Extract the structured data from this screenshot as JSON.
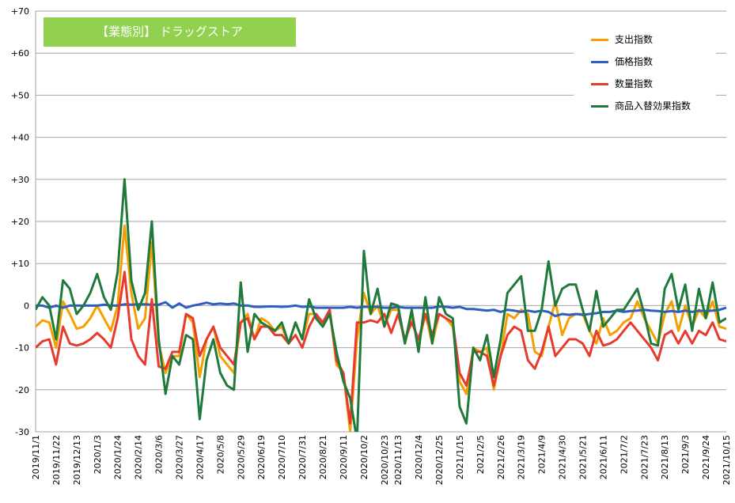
{
  "chart_data": {
    "type": "line",
    "title": "【業態別】 ドラッグストア",
    "ylim": [
      -30,
      70
    ],
    "yticks": [
      "+70",
      "+60",
      "+50",
      "+40",
      "+30",
      "+20",
      "+10",
      "0",
      "-10",
      "-20",
      "-30"
    ],
    "ytick_values": [
      70,
      60,
      50,
      40,
      30,
      20,
      10,
      0,
      -10,
      -20,
      -30
    ],
    "x_tick_labels": [
      "2019/11/1",
      "2019/11/22",
      "2019/12/13",
      "2020/1/3",
      "2020/1/24",
      "2020/2/14",
      "2020/3/6",
      "2020/3/27",
      "2020/4/17",
      "2020/5/8",
      "2020/5/29",
      "2020/6/19",
      "2020/7/10",
      "2020/7/31",
      "2020/8/21",
      "2020/9/11",
      "2020/10/2",
      "2020/10/23",
      "2020/11/13",
      "2020/12/4",
      "2020/12/25",
      "2021/1/15",
      "2021/2/5",
      "2021/2/26",
      "2021/3/19",
      "2021/4/9",
      "2021/4/30",
      "2021/5/21",
      "2021/6/11",
      "2021/7/2",
      "2021/7/23",
      "2021/8/13",
      "2021/9/3",
      "2021/9/24",
      "2021/10/15"
    ],
    "grid": true,
    "legend_position": "top-right",
    "series": [
      {
        "name": "支出指数",
        "color": "#f5a000",
        "values": [
          -5,
          -3.5,
          -4,
          -10,
          1,
          -2,
          -5.5,
          -5,
          -3,
          0,
          -3,
          -6,
          0,
          19,
          3,
          -5.5,
          -3,
          15,
          -9,
          -16,
          -12,
          -12,
          -2,
          -4,
          -17,
          -8,
          -5,
          -12,
          -14,
          -16,
          -4,
          -2,
          -8,
          -3,
          -4,
          -6,
          -5,
          -9,
          -4,
          -8,
          -2,
          -2,
          -5,
          -1,
          -14,
          -16,
          -30,
          -8,
          3,
          -2,
          0,
          -5,
          -1,
          -1,
          -9,
          -3,
          -9,
          -2,
          -9,
          -2,
          -3,
          -5,
          -18,
          -21,
          -10,
          -11,
          -10,
          -20,
          -12,
          -2,
          -3,
          -1,
          -2,
          -11,
          -12,
          -5,
          1,
          -7,
          -3,
          -2,
          -2,
          -6,
          -9,
          -3,
          -7,
          -6,
          -4,
          -3,
          1,
          -3,
          -6,
          -9,
          -2,
          1,
          -6,
          0,
          -5,
          -1,
          -3,
          1,
          -5,
          -5.5
        ]
      },
      {
        "name": "価格指数",
        "color": "#2e5fbf",
        "values": [
          0,
          0,
          -0.5,
          0,
          -0.5,
          0,
          0,
          0,
          0,
          0,
          0.2,
          0,
          0,
          0.3,
          0.2,
          0.3,
          0.3,
          0.2,
          0.2,
          0.8,
          -0.5,
          0.5,
          -0.5,
          0,
          0.3,
          0.7,
          0.3,
          0.5,
          0.3,
          0.5,
          0,
          0,
          -0.3,
          -0.3,
          -0.2,
          -0.2,
          -0.3,
          -0.2,
          0,
          -0.3,
          -0.2,
          -0.5,
          -0.5,
          -0.5,
          -0.5,
          -0.5,
          -0.3,
          -0.5,
          -0.3,
          -0.3,
          -0.3,
          -0.5,
          -0.5,
          -0.3,
          -0.5,
          -0.5,
          -0.5,
          -0.5,
          -0.5,
          -0.2,
          -0.3,
          -0.5,
          -0.3,
          -0.8,
          -0.8,
          -1,
          -1.2,
          -1,
          -1.5,
          -1,
          -1.2,
          -1.5,
          -1.2,
          -1.5,
          -1.2,
          -1.5,
          -2.5,
          -2,
          -2.2,
          -2,
          -2.2,
          -2,
          -1.8,
          -1.5,
          -1.5,
          -1.2,
          -1.5,
          -1.3,
          -1.2,
          -1,
          -1.2,
          -1.3,
          -1.5,
          -1.3,
          -1.5,
          -1.2,
          -1.5,
          -1.2,
          -1.3,
          -1.2,
          -1,
          -0.5
        ]
      },
      {
        "name": "数量指数",
        "color": "#e63b2e",
        "values": [
          -10,
          -8.5,
          -8,
          -14,
          -5,
          -9,
          -9.5,
          -9,
          -8,
          -6.5,
          -8,
          -10,
          -3,
          8,
          -8,
          -12,
          -14,
          1.5,
          -14.5,
          -15,
          -11,
          -11,
          -2,
          -3,
          -12,
          -8,
          -5,
          -10,
          -12,
          -14,
          -4,
          -3,
          -8,
          -5,
          -5,
          -7,
          -7,
          -9,
          -7,
          -10,
          -5,
          -2,
          -4,
          -1,
          -13,
          -16,
          -28,
          -4,
          -4,
          -3.5,
          -4,
          -2,
          -6.5,
          -2,
          -8,
          -4,
          -8,
          -2,
          -7,
          -2,
          -3,
          -4,
          -16,
          -19,
          -11,
          -11,
          -12,
          -19,
          -12,
          -7,
          -5,
          -6,
          -13,
          -15,
          -11,
          -5,
          -12,
          -10,
          -8,
          -8,
          -9,
          -12,
          -6,
          -9.5,
          -9,
          -8,
          -6,
          -4,
          -6,
          -8,
          -10,
          -13,
          -7,
          -6,
          -9,
          -6,
          -9,
          -6,
          -7,
          -4,
          -8,
          -8.5
        ]
      },
      {
        "name": "商品入替効果指数",
        "color": "#1f7a3c",
        "values": [
          -1,
          2,
          0,
          -8,
          6,
          4,
          -2,
          0,
          3,
          7.5,
          2,
          -1,
          8,
          30,
          6,
          -1,
          3,
          20,
          -8,
          -21,
          -12,
          -14,
          -7,
          -8,
          -27,
          -13,
          -8,
          -16,
          -19,
          -20,
          5.5,
          -11,
          -2,
          -4,
          -5,
          -6,
          -4,
          -9,
          -4,
          -8,
          1.5,
          -3,
          -5,
          -2,
          -11,
          -18,
          -22,
          -32,
          13,
          -2,
          4,
          -5,
          0.5,
          0,
          -9,
          -1,
          -11,
          2,
          -9,
          2,
          -2,
          -3,
          -24,
          -28,
          -10,
          -13,
          -7,
          -17,
          -8,
          3,
          5,
          7,
          -6,
          -6,
          -1,
          10.5,
          0,
          4,
          5,
          5,
          -1,
          -6,
          3.5,
          -5,
          -3,
          -1,
          -1,
          1.5,
          4,
          -2,
          -9,
          -9.5,
          4,
          7.5,
          -1,
          5,
          -6,
          4,
          -3,
          5.5,
          -4,
          -3
        ]
      }
    ]
  }
}
